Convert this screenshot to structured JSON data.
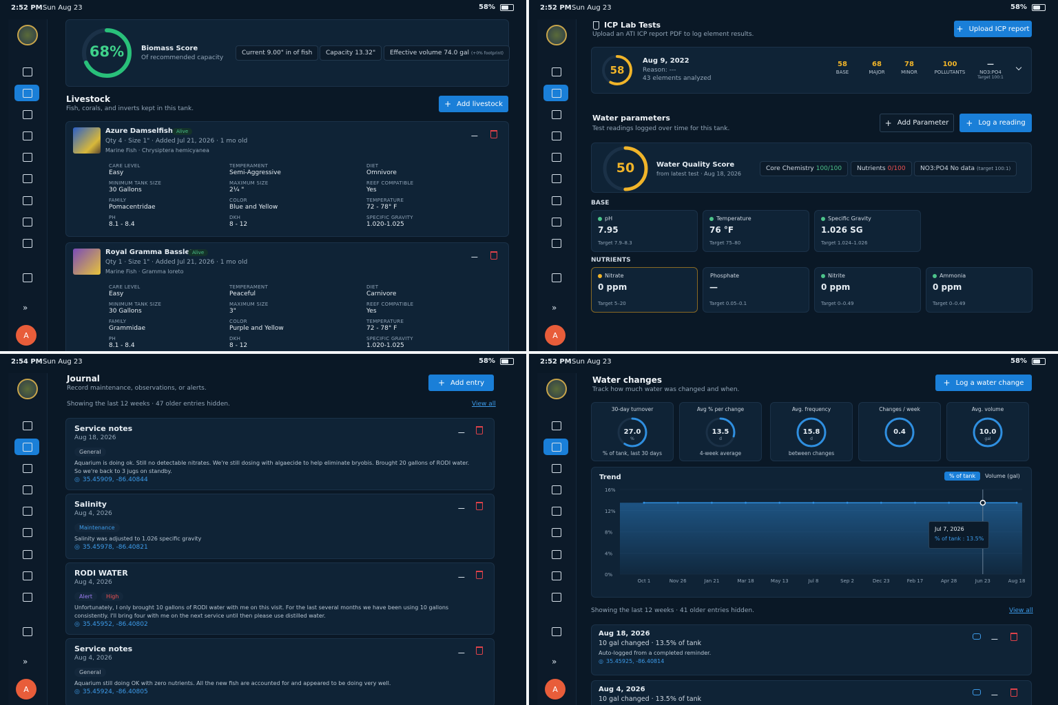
{
  "livestock_panel": {
    "status": {
      "time": "2:52 PM",
      "date": "Sun Aug 23",
      "battery": "58%"
    },
    "avatar": "A",
    "biomass": {
      "score": "68%",
      "title": "Biomass Score",
      "subtitle": "Of recommended capacity",
      "chips": [
        "Current 9.00\" in of fish",
        "Capacity 13.32\"",
        "Effective volume 74.0 gal"
      ],
      "footnote": "(+0% footprint)"
    },
    "header": {
      "title": "Livestock",
      "subtitle": "Fish, corals, and inverts kept in this tank.",
      "button": "Add livestock"
    },
    "items": [
      {
        "name": "Azure Damselfish",
        "status": "Alive",
        "meta": "Qty 4 · Size 1\" · Added Jul 21, 2026 · 1 mo old",
        "species": "Marine Fish · Chrysiptera hemicyanea",
        "attributes": [
          {
            "label": "CARE LEVEL",
            "value": "Easy"
          },
          {
            "label": "MINIMUM TANK SIZE",
            "value": "30 Gallons"
          },
          {
            "label": "FAMILY",
            "value": "Pomacentridae"
          },
          {
            "label": "PH",
            "value": "8.1 - 8.4"
          },
          {
            "label": "TEMPERAMENT",
            "value": "Semi-Aggressive"
          },
          {
            "label": "MAXIMUM SIZE",
            "value": "2¼ \""
          },
          {
            "label": "COLOR",
            "value": "Blue and Yellow"
          },
          {
            "label": "DKH",
            "value": "8 - 12"
          },
          {
            "label": "DIET",
            "value": "Omnivore"
          },
          {
            "label": "REEF COMPATIBLE",
            "value": "Yes"
          },
          {
            "label": "TEMPERATURE",
            "value": "72 - 78° F"
          },
          {
            "label": "SPECIFIC GRAVITY",
            "value": "1.020-1.025"
          }
        ]
      },
      {
        "name": "Royal Gramma Basslet",
        "status": "Alive",
        "meta": "Qty 1 · Size 1\" · Added Jul 21, 2026 · 1 mo old",
        "species": "Marine Fish · Gramma loreto",
        "attributes": [
          {
            "label": "CARE LEVEL",
            "value": "Easy"
          },
          {
            "label": "MINIMUM TANK SIZE",
            "value": "30 Gallons"
          },
          {
            "label": "FAMILY",
            "value": "Grammidae"
          },
          {
            "label": "PH",
            "value": "8.1 - 8.4"
          },
          {
            "label": "TEMPERAMENT",
            "value": "Peaceful"
          },
          {
            "label": "MAXIMUM SIZE",
            "value": "3\""
          },
          {
            "label": "COLOR",
            "value": "Purple and Yellow"
          },
          {
            "label": "DKH",
            "value": "8 - 12"
          },
          {
            "label": "DIET",
            "value": "Carnivore"
          },
          {
            "label": "REEF COMPATIBLE",
            "value": "Yes"
          },
          {
            "label": "TEMPERATURE",
            "value": "72 - 78° F"
          },
          {
            "label": "SPECIFIC GRAVITY",
            "value": "1.020-1.025"
          }
        ]
      }
    ]
  },
  "icp_panel": {
    "status": {
      "time": "2:52 PM",
      "date": "Sun Aug 23",
      "battery": "58%"
    },
    "avatar": "A",
    "header": {
      "title": "ICP Lab Tests",
      "subtitle": "Upload an ATI ICP report PDF to log element results.",
      "button": "Upload ICP report"
    },
    "icp": {
      "score": "58",
      "date": "Aug 9, 2022",
      "reason": "Reason: ---",
      "elements": "43 elements analyzed",
      "stats": [
        {
          "value": "58",
          "label": "BASE"
        },
        {
          "value": "68",
          "label": "MAJOR"
        },
        {
          "value": "78",
          "label": "MINOR"
        },
        {
          "value": "100",
          "label": "POLLUTANTS"
        },
        {
          "value": "—",
          "label": "NO3:PO4",
          "note": "Target 100:1"
        }
      ]
    },
    "params_header": {
      "title": "Water parameters",
      "subtitle": "Test readings logged over time for this tank.",
      "buttons": [
        "Add Parameter",
        "Log a reading"
      ]
    },
    "quality": {
      "score": "50",
      "title": "Water Quality Score",
      "subtitle": "from latest test · Aug 18, 2026",
      "chips": [
        {
          "label": "Core Chemistry",
          "value": "100/100",
          "color": "#4cc38a"
        },
        {
          "label": "Nutrients",
          "value": "0/100",
          "color": "#f05252"
        },
        {
          "label": "NO3:PO4 No data",
          "value": "(target 100:1)",
          "color": "#93a6b8"
        }
      ]
    },
    "groups": [
      {
        "title": "BASE",
        "params": [
          {
            "name": "pH",
            "value": "7.95",
            "target": "Target 7.9–8.3",
            "color": "#4cc38a"
          },
          {
            "name": "Temperature",
            "value": "76 °F",
            "target": "Target 75–80",
            "color": "#4cc38a"
          },
          {
            "name": "Specific Gravity",
            "value": "1.026 SG",
            "target": "Target 1.024–1.026",
            "color": "#4cc38a"
          }
        ]
      },
      {
        "title": "NUTRIENTS",
        "params": [
          {
            "name": "Nitrate",
            "value": "0 ppm",
            "target": "Target 5–20",
            "color": "#f0b429"
          },
          {
            "name": "Phosphate",
            "value": "—",
            "target": "Target 0.05–0.1"
          },
          {
            "name": "Nitrite",
            "value": "0 ppm",
            "target": "Target 0–0.49",
            "color": "#4cc38a"
          },
          {
            "name": "Ammonia",
            "value": "0 ppm",
            "target": "Target 0–0.49",
            "color": "#4cc38a"
          }
        ]
      }
    ]
  },
  "journal_panel": {
    "status": {
      "time": "2:54 PM",
      "date": "Sun Aug 23",
      "battery": "58%"
    },
    "avatar": "A",
    "header": {
      "title": "Journal",
      "subtitle": "Record maintenance, observations, or alerts.",
      "button": "Add entry"
    },
    "showing": "Showing the last 12 weeks · 47 older entries hidden.",
    "view_all": "View all",
    "entries": [
      {
        "title": "Service notes",
        "date": "Aug 18, 2026",
        "tags": [
          {
            "text": "General",
            "color": "#b5c0cb"
          }
        ],
        "text": "Aquarium is doing ok. Still no detectable nitrates. We're still dosing with algaecide to help eliminate bryobis. Brought 20 gallons of RODI water. So we're back to 3 jugs on standby.",
        "location": "35.45909, -86.40844"
      },
      {
        "title": "Salinity",
        "date": "Aug 4, 2026",
        "tags": [
          {
            "text": "Maintenance",
            "color": "#3d9be9"
          }
        ],
        "text": "Salinity was adjusted to 1.026 specific gravity",
        "location": "35.45978, -86.40821"
      },
      {
        "title": "RODI WATER",
        "date": "Aug 4, 2026",
        "tags": [
          {
            "text": "Alert",
            "color": "#9b7cf0"
          },
          {
            "text": "High",
            "color": "#f05252"
          }
        ],
        "text": "Unfortunately, I only brought 10 gallons of RODI water with me on this visit. For the last several months we have been using 10 gallons consistently. I'll bring four with me on the next service until then please use distilled water.",
        "location": "35.45952, -86.40802"
      },
      {
        "title": "Service notes",
        "date": "Aug 4, 2026",
        "tags": [
          {
            "text": "General",
            "color": "#b5c0cb"
          }
        ],
        "text": "Aquarium still doing OK with zero nutrients. All the new fish are accounted for and appeared to be doing very well.",
        "location": "35.45924, -86.40805"
      }
    ]
  },
  "water_changes_panel": {
    "status": {
      "time": "2:52 PM",
      "date": "Sun Aug 23",
      "battery": "58%"
    },
    "avatar": "A",
    "header": {
      "title": "Water changes",
      "subtitle": "Track how much water was changed and when.",
      "button": "Log a water change"
    },
    "stats": [
      {
        "label": "30-day turnover",
        "value": "27.0",
        "unit": "%",
        "caption": "% of tank, last 30 days"
      },
      {
        "label": "Avg % per change",
        "value": "13.5",
        "unit": "d",
        "caption": "4-week average"
      },
      {
        "label": "Avg. frequency",
        "value": "15.8",
        "unit": "d",
        "caption": "between changes"
      },
      {
        "label": "Changes / week",
        "value": "0.4"
      },
      {
        "label": "Avg. volume",
        "value": "10.0",
        "unit": "gal"
      }
    ],
    "showing": "Showing the last 12 weeks · 41 older entries hidden.",
    "view_all": "View all",
    "entries": [
      {
        "date": "Aug 18, 2026",
        "summary": "10 gal changed · 13.5% of tank",
        "note": "Auto-logged from a completed reminder.",
        "location": "35.45925, -86.40814"
      },
      {
        "date": "Aug 4, 2026",
        "summary": "10 gal changed · 13.5% of tank"
      }
    ]
  },
  "chart_data": {
    "type": "line",
    "title": "Trend",
    "toggle": "Volume (gal)",
    "categories": [
      "Oct 1",
      "Nov 26",
      "Jan 21",
      "Mar 18",
      "May 13",
      "Jul 8",
      "Sep 2",
      "Dec 23",
      "Feb 17",
      "Apr 28",
      "Jun 23",
      "Aug 18"
    ],
    "series": [
      {
        "name": "% of tank",
        "color": "#2f8fe0",
        "values": [
          13.5,
          13.5,
          13.5,
          13.5,
          13.5,
          13.5,
          13.5,
          13.5,
          13.5,
          13.5,
          13.5,
          13.5
        ]
      }
    ],
    "ylim": [
      0,
      16
    ],
    "yticks": [
      {
        "value": 0,
        "label": "0%"
      },
      {
        "value": 4,
        "label": "4%"
      },
      {
        "value": 8,
        "label": "8%"
      },
      {
        "value": 12,
        "label": "12%"
      },
      {
        "value": 16,
        "label": "16%"
      }
    ],
    "tooltip": {
      "date": "Jul 7, 2026",
      "text": "% of tank : 13.5%"
    }
  }
}
